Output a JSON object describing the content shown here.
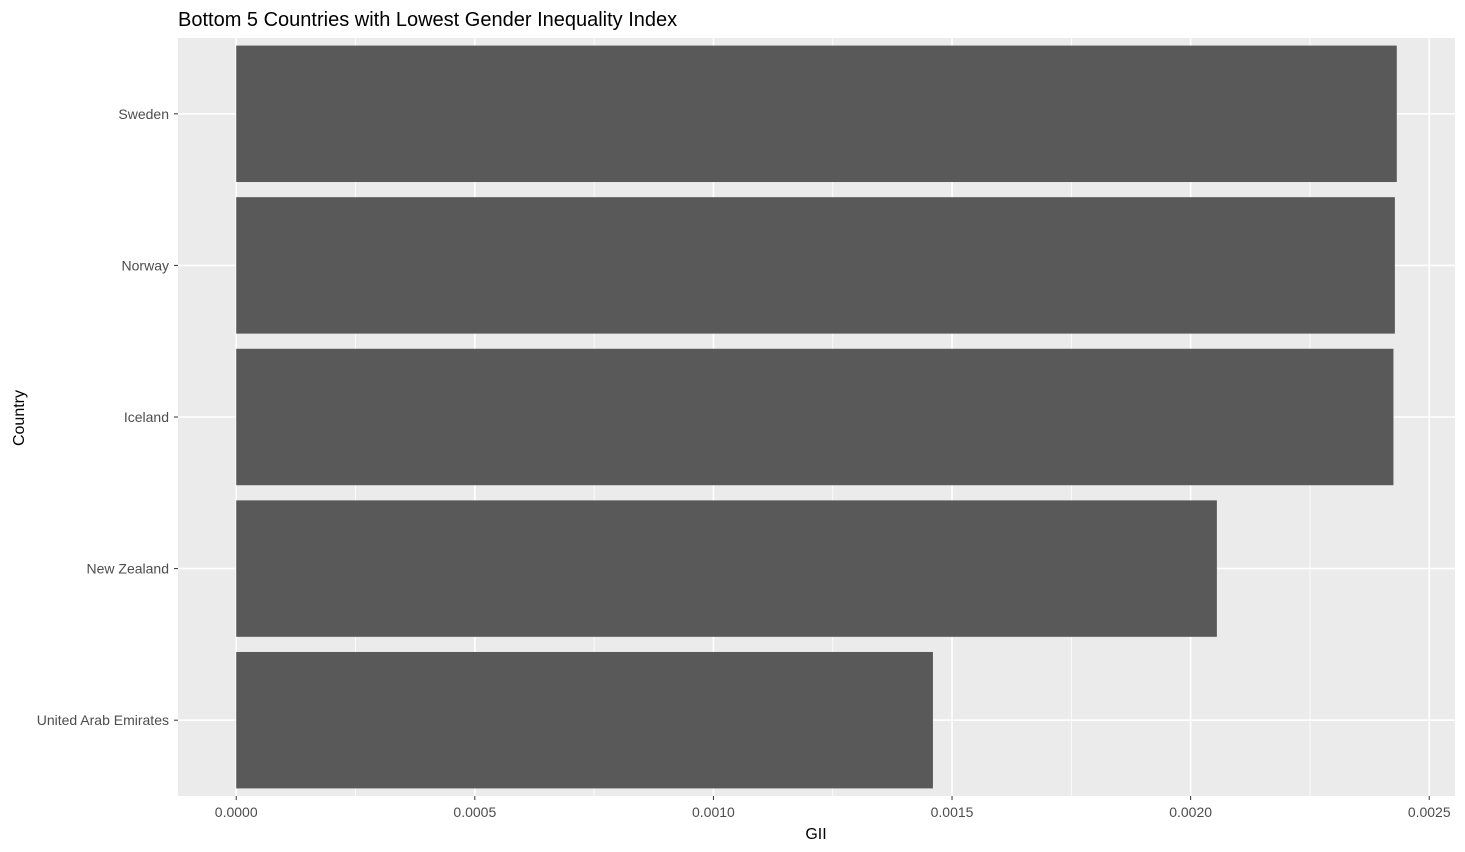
{
  "chart_data": {
    "type": "bar",
    "orientation": "horizontal",
    "title": "Bottom 5 Countries with Lowest Gender Inequality Index",
    "xlabel": "GII",
    "ylabel": "Country",
    "categories": [
      "United Arab Emirates",
      "New Zealand",
      "Iceland",
      "Norway",
      "Sweden"
    ],
    "values": [
      0.00146,
      0.002055,
      0.002425,
      0.002428,
      0.002432
    ],
    "xlim": [
      -0.000122,
      0.002554
    ],
    "xticks": [
      0,
      0.0005,
      0.001,
      0.0015,
      0.002,
      0.0025
    ],
    "xtick_labels": [
      "0.0000",
      "0.0005",
      "0.0010",
      "0.0015",
      "0.0020",
      "0.0025"
    ],
    "grid": true,
    "legend": "none",
    "colors": {
      "bar": "#595959",
      "panel_background": "#ebebeb",
      "grid_line": "#ffffff",
      "tick_text": "#4d4d4d",
      "tick_mark": "#333333"
    }
  }
}
